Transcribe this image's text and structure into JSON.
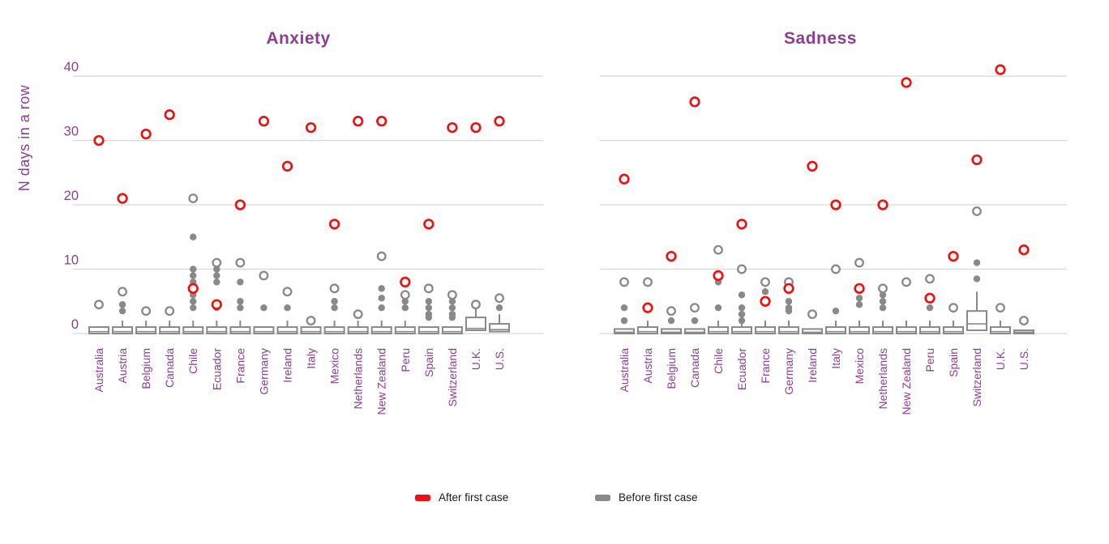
{
  "chart_data": {
    "type": "boxplot+scatter",
    "ylabel": "N days in a row",
    "ylim": [
      0,
      42
    ],
    "yticks": [
      0,
      10,
      20,
      30,
      40
    ],
    "grid": true,
    "legend_position": "bottom-center",
    "colors": {
      "purple": "#8d3e94",
      "red": "#ee1111",
      "gray": "#898989",
      "grid": "#d8d8d8",
      "legend_text": "#1a1a1a"
    },
    "legend": [
      {
        "label": "After first case",
        "color": "#ee1111",
        "marker": "red-swatch"
      },
      {
        "label": "Before first case",
        "color": "#898989",
        "marker": "gray-swatch"
      }
    ],
    "categories": [
      "Australia",
      "Austria",
      "Belgium",
      "Canada",
      "Chile",
      "Ecuador",
      "France",
      "Germany",
      "Ireland",
      "Italy",
      "Mexico",
      "Netherlands",
      "New Zealand",
      "Peru",
      "Spain",
      "Switzerland",
      "U.K.",
      "U.S."
    ],
    "panels": [
      {
        "title": "Anxiety",
        "after": [
          30,
          21,
          31,
          34,
          7,
          4.5,
          20,
          33,
          26,
          32,
          17,
          33,
          33,
          8,
          17,
          32,
          32,
          33
        ],
        "open": [
          [
            4.5
          ],
          [
            6.5
          ],
          [
            3.5
          ],
          [
            3.5
          ],
          [
            21
          ],
          [
            11
          ],
          [
            11
          ],
          [
            9
          ],
          [
            6.5
          ],
          [
            2
          ],
          [
            7
          ],
          [
            3
          ],
          [
            12
          ],
          [
            6
          ],
          [
            7
          ],
          [
            6
          ],
          [
            4.5
          ],
          [
            5.5
          ]
        ],
        "filled": [
          [],
          [
            4.5,
            3.5
          ],
          [],
          [],
          [
            15,
            10,
            9,
            8,
            6,
            5,
            4
          ],
          [
            10,
            9,
            8,
            4
          ],
          [
            8,
            5,
            4
          ],
          [
            4
          ],
          [
            4
          ],
          [],
          [
            5,
            4
          ],
          [],
          [
            7,
            5.5,
            4
          ],
          [
            5,
            4
          ],
          [
            5,
            4,
            3,
            2.5
          ],
          [
            5,
            4,
            3,
            2.5
          ],
          [],
          [
            4
          ]
        ],
        "box": [
          [
            0,
            0.3,
            1,
            1
          ],
          [
            0,
            0.3,
            1,
            2
          ],
          [
            0,
            0.3,
            1,
            2
          ],
          [
            0,
            0.3,
            1,
            2
          ],
          [
            0,
            0.3,
            1,
            2
          ],
          [
            0,
            0.3,
            1,
            2
          ],
          [
            0,
            0.3,
            1,
            2
          ],
          [
            0,
            0.3,
            1,
            1
          ],
          [
            0,
            0.3,
            1,
            2
          ],
          [
            0,
            0.3,
            1,
            1
          ],
          [
            0,
            0.3,
            1,
            2
          ],
          [
            0,
            0.3,
            1,
            2
          ],
          [
            0,
            0.3,
            1,
            2
          ],
          [
            0,
            0.3,
            1,
            2
          ],
          [
            0,
            0.3,
            1,
            1
          ],
          [
            0,
            0.3,
            1,
            1
          ],
          [
            0.5,
            0.8,
            2.5,
            4
          ],
          [
            0.3,
            0.6,
            1.5,
            3
          ]
        ]
      },
      {
        "title": "Sadness",
        "after": [
          24,
          4,
          12,
          36,
          9,
          17,
          5,
          7,
          26,
          20,
          7,
          20,
          39,
          5.5,
          12,
          27,
          41,
          13
        ],
        "open": [
          [
            8
          ],
          [
            8
          ],
          [
            3.5
          ],
          [
            4
          ],
          [
            13
          ],
          [
            10
          ],
          [
            8
          ],
          [
            8
          ],
          [
            3
          ],
          [
            10
          ],
          [
            11
          ],
          [
            7
          ],
          [
            8
          ],
          [
            8.5
          ],
          [
            4
          ],
          [
            19
          ],
          [
            4
          ],
          [
            2
          ]
        ],
        "filled": [
          [
            4,
            2
          ],
          [],
          [
            2
          ],
          [
            2
          ],
          [
            8,
            4
          ],
          [
            6,
            4,
            3,
            2
          ],
          [
            6.5
          ],
          [
            5,
            4,
            3.5
          ],
          [],
          [
            3.5
          ],
          [
            5.5,
            4.5
          ],
          [
            6,
            5,
            4
          ],
          [],
          [
            4
          ],
          [],
          [
            11,
            8.5
          ],
          [],
          []
        ],
        "box": [
          [
            0,
            0.2,
            0.7,
            0.7
          ],
          [
            0,
            0.3,
            1,
            2
          ],
          [
            0,
            0.2,
            0.7,
            0.7
          ],
          [
            0,
            0.2,
            0.7,
            0.7
          ],
          [
            0,
            0.3,
            1,
            2
          ],
          [
            0,
            0.3,
            1,
            1.5
          ],
          [
            0,
            0.3,
            1,
            2
          ],
          [
            0,
            0.3,
            1,
            2
          ],
          [
            0,
            0.2,
            0.7,
            0.7
          ],
          [
            0,
            0.3,
            1,
            2
          ],
          [
            0,
            0.3,
            1,
            2
          ],
          [
            0,
            0.3,
            1,
            2
          ],
          [
            0,
            0.3,
            1,
            2
          ],
          [
            0,
            0.3,
            1,
            2
          ],
          [
            0,
            0.3,
            1,
            2
          ],
          [
            0.5,
            1.5,
            3.5,
            6.5
          ],
          [
            0,
            0.3,
            1,
            2
          ],
          [
            0,
            0.2,
            0.5,
            0.5
          ]
        ]
      }
    ]
  }
}
